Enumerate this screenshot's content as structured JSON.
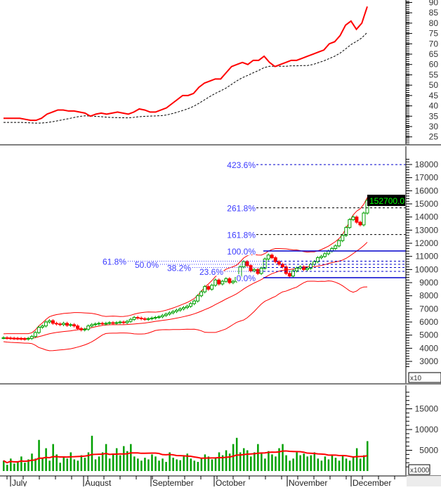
{
  "chart_data": [
    {
      "type": "line",
      "panel": "top",
      "ylim": [
        20,
        90
      ],
      "yticks": [
        25,
        30,
        35,
        40,
        45,
        50,
        55,
        60,
        65,
        70,
        75,
        80,
        85,
        90
      ],
      "line_color": "#ff0000",
      "ma_style": "black dashed",
      "values": [
        34,
        34,
        34,
        34,
        33.5,
        33,
        33,
        34,
        36,
        37,
        38,
        38,
        37.5,
        37.5,
        37,
        36.5,
        35,
        36,
        36.5,
        36,
        36.5,
        37,
        36.5,
        36,
        37,
        38.5,
        38,
        37,
        37,
        38,
        39,
        41,
        43,
        45,
        45,
        46,
        49,
        51,
        52,
        53,
        53,
        56,
        59,
        60,
        61,
        60,
        62,
        62,
        64,
        61,
        59,
        60,
        61,
        62,
        62,
        63,
        64,
        65,
        66,
        67,
        70,
        71,
        74,
        79,
        81,
        77,
        80,
        88
      ]
    },
    {
      "type": "candlestick",
      "panel": "price",
      "ylim": [
        2500,
        18500
      ],
      "yticks": [
        3000,
        4000,
        5000,
        6000,
        7000,
        8000,
        9000,
        10000,
        11000,
        12000,
        13000,
        14000,
        15000,
        16000,
        17000,
        18000
      ],
      "scale_label": "x10",
      "last_price_label": "152700.0",
      "up_color": "#00a000",
      "down_color": "#ff0000",
      "bands_color": "#ff0000",
      "closes": [
        4800,
        4780,
        4760,
        4750,
        4740,
        4720,
        4700,
        4750,
        4900,
        5200,
        5600,
        5700,
        6000,
        6100,
        5900,
        5850,
        5800,
        5900,
        5750,
        5800,
        5700,
        5500,
        5400,
        5450,
        5700,
        5800,
        5850,
        5900,
        5850,
        5900,
        5950,
        5900,
        5950,
        6000,
        5950,
        6050,
        6200,
        6350,
        6300,
        6250,
        6200,
        6250,
        6300,
        6350,
        6400,
        6500,
        6600,
        6700,
        6800,
        6900,
        7000,
        7100,
        7200,
        7400,
        7600,
        8000,
        8300,
        8700,
        8500,
        8800,
        9200,
        8900,
        9100,
        9300,
        9000,
        9100,
        9400,
        10200,
        10600,
        10300,
        9900,
        10000,
        9700,
        10100,
        10800,
        11100,
        10900,
        10600,
        10400,
        10200,
        9700,
        9500,
        9900,
        10100,
        10200,
        10000,
        10100,
        10400,
        10600,
        10900,
        11000,
        11200,
        11400,
        11600,
        11800,
        12200,
        12600,
        13200,
        13800,
        14000,
        13600,
        13400,
        14300,
        15270
      ],
      "fibonacci": {
        "low": 9376,
        "high": 11410,
        "levels": [
          {
            "label": "0.0%",
            "ratio": 0
          },
          {
            "label": "23.6%",
            "ratio": 0.236
          },
          {
            "label": "38.2%",
            "ratio": 0.382
          },
          {
            "label": "50.0%",
            "ratio": 0.5
          },
          {
            "label": "61.8%",
            "ratio": 0.618
          },
          {
            "label": "100.0%",
            "ratio": 1.0
          },
          {
            "label": "161.8%",
            "ratio": 1.618
          },
          {
            "label": "261.8%",
            "ratio": 2.618
          },
          {
            "label": "423.6%",
            "ratio": 4.236
          }
        ],
        "label_color": "#3a3aff"
      }
    },
    {
      "type": "bar",
      "panel": "volume",
      "ylim": [
        0,
        20000
      ],
      "yticks": [
        5000,
        10000,
        15000
      ],
      "scale_label": "x1000",
      "bar_color": "#00a000",
      "ma_color": "#ff0000",
      "values": [
        2500,
        1500,
        3000,
        1800,
        2200,
        3500,
        2000,
        2800,
        4200,
        3000,
        7500,
        3200,
        5500,
        2500,
        6500,
        4000,
        2000,
        3500,
        3000,
        4500,
        2800,
        2500,
        3800,
        3200,
        4500,
        8500,
        2800,
        3500,
        4500,
        6500,
        3000,
        4200,
        5500,
        3800,
        6000,
        4800,
        6500,
        3500,
        3000,
        2500,
        3200,
        2800,
        4000,
        3500,
        2500,
        3000,
        2200,
        4500,
        3200,
        2800,
        2600,
        3500,
        4200,
        3000,
        2500,
        2200,
        3000,
        4000,
        3500,
        2800,
        3200,
        4500,
        3800,
        5000,
        4200,
        6500,
        8000,
        4500,
        5500,
        5000,
        3500,
        4500,
        6500,
        4200,
        3000,
        4800,
        4000,
        3500,
        5500,
        6500,
        3800,
        2500,
        3000,
        4500,
        3800,
        4200,
        3500,
        3800,
        4500,
        3000,
        2500,
        3500,
        2800,
        4000,
        3200,
        2500,
        3800,
        3000,
        2500,
        3500,
        5500,
        3000,
        3800,
        7200
      ]
    }
  ],
  "xaxis": {
    "months": [
      "July",
      "August",
      "September",
      "October",
      "November",
      "December"
    ]
  }
}
